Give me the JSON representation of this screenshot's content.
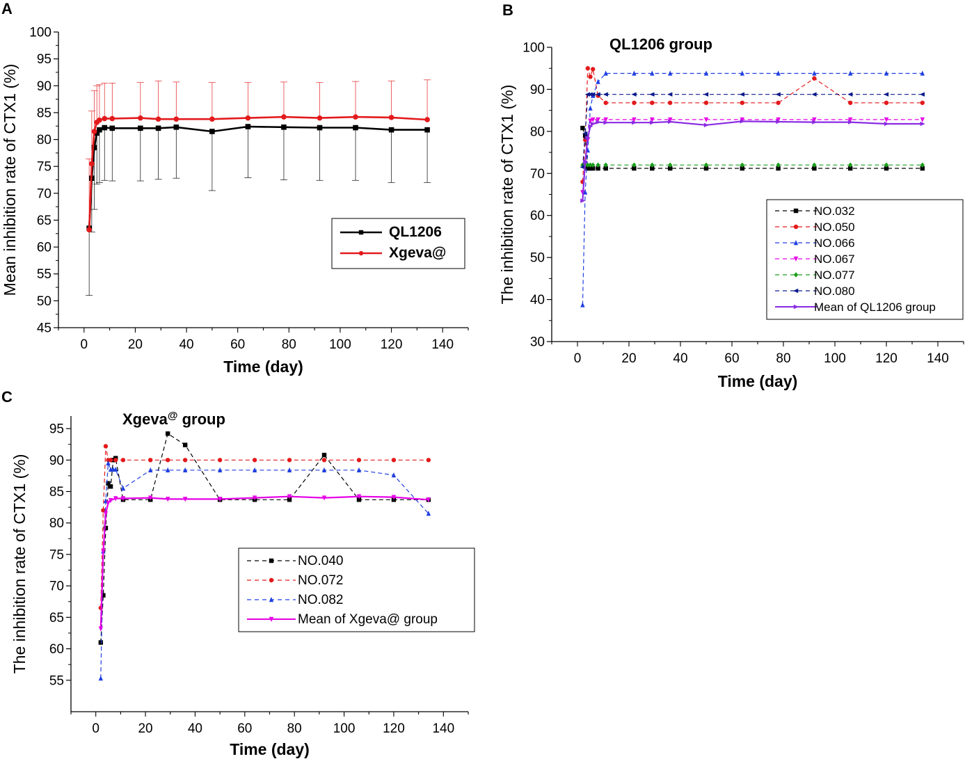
{
  "chart_data": [
    {
      "panel": "A",
      "type": "line",
      "title": "",
      "xlabel": "Time (day)",
      "ylabel": "Mean  inhibition rate of CTX1 (%)",
      "xlim": [
        -10,
        150
      ],
      "ylim": [
        45,
        100
      ],
      "xticks": [
        0,
        20,
        40,
        60,
        80,
        100,
        120,
        140
      ],
      "yticks": [
        45,
        50,
        55,
        60,
        65,
        70,
        75,
        80,
        85,
        90,
        95,
        100
      ],
      "legend_position": "center-right",
      "series": [
        {
          "name": "QL1206",
          "color": "#000000",
          "marker": "square",
          "x": [
            2,
            3,
            4,
            5,
            6,
            8,
            11,
            22,
            29,
            36,
            50,
            64,
            78,
            92,
            106,
            120,
            134
          ],
          "y": [
            63.5,
            72.8,
            78.5,
            81.2,
            81.8,
            82.2,
            82.1,
            82.1,
            82.1,
            82.3,
            81.5,
            82.4,
            82.3,
            82.2,
            82.2,
            81.8,
            81.8
          ],
          "err": [
            12.5,
            10,
            11.5,
            9.5,
            9.8,
            9.8,
            9.8,
            9.8,
            9.5,
            9.5,
            11,
            9.5,
            9.8,
            9.8,
            9.8,
            9.8,
            9.8
          ]
        },
        {
          "name": "Xgeva@",
          "color": "#e31a1c",
          "marker": "circle",
          "x": [
            2,
            3,
            4,
            5,
            6,
            8,
            11,
            22,
            29,
            36,
            50,
            64,
            78,
            92,
            106,
            120,
            134
          ],
          "y": [
            63.2,
            75.5,
            81.5,
            83.2,
            83.6,
            83.9,
            83.9,
            84.0,
            83.8,
            83.8,
            83.8,
            84.0,
            84.2,
            84.0,
            84.2,
            84.1,
            83.7
          ],
          "err": [
            13.2,
            9.8,
            7.6,
            6.8,
            6.6,
            6.6,
            6.6,
            6.6,
            7.1,
            6.9,
            6.8,
            6.6,
            6.5,
            6.6,
            6.6,
            6.8,
            7.4
          ]
        }
      ]
    },
    {
      "panel": "B",
      "type": "line",
      "title": "QL1206 group",
      "xlabel": "Time (day)",
      "ylabel": "The inhibition rate of CTX1 (%)",
      "xlim": [
        -10,
        150
      ],
      "ylim": [
        30,
        100
      ],
      "xticks": [
        0,
        20,
        40,
        60,
        80,
        100,
        120,
        140
      ],
      "yticks": [
        30,
        40,
        50,
        60,
        70,
        80,
        90,
        100
      ],
      "legend_position": "lower-right",
      "series": [
        {
          "name": "NO.032",
          "color": "#000000",
          "marker": "square",
          "style": "dashed",
          "x": [
            2,
            3,
            4,
            5,
            6,
            8,
            11,
            22,
            29,
            36,
            50,
            64,
            78,
            92,
            106,
            120,
            134
          ],
          "y": [
            80.8,
            79.0,
            71.2,
            71.2,
            71.2,
            71.2,
            71.2,
            71.2,
            71.2,
            71.2,
            71.2,
            71.2,
            71.2,
            71.2,
            71.2,
            71.2,
            71.2
          ]
        },
        {
          "name": "NO.050",
          "color": "#e31a1c",
          "marker": "circle",
          "style": "dashed",
          "x": [
            2,
            3,
            4,
            5,
            6,
            8,
            11,
            22,
            29,
            36,
            50,
            64,
            78,
            92,
            106,
            120,
            134
          ],
          "y": [
            68.0,
            78.0,
            95.0,
            93.0,
            94.8,
            88.5,
            86.8,
            86.8,
            86.8,
            86.8,
            86.8,
            86.8,
            86.8,
            92.6,
            86.8,
            86.8,
            86.8
          ]
        },
        {
          "name": "NO.066",
          "color": "#1f3fe0",
          "marker": "triangle-up",
          "style": "dashed",
          "x": [
            2,
            3,
            4,
            5,
            6,
            8,
            11,
            22,
            29,
            36,
            50,
            64,
            78,
            92,
            106,
            120,
            134
          ],
          "y": [
            38.7,
            65.5,
            75.5,
            85.5,
            88.5,
            91.8,
            93.8,
            93.8,
            93.8,
            93.8,
            93.8,
            93.8,
            93.8,
            93.8,
            93.8,
            93.8,
            93.8
          ]
        },
        {
          "name": "NO.067",
          "color": "#e600e6",
          "marker": "triangle-down",
          "style": "dashed",
          "x": [
            2,
            3,
            4,
            5,
            6,
            8,
            11,
            22,
            29,
            36,
            50,
            64,
            78,
            92,
            106,
            120,
            134
          ],
          "y": [
            65.5,
            72.5,
            78.0,
            82.5,
            82.8,
            82.8,
            82.8,
            82.8,
            82.8,
            82.8,
            82.8,
            82.8,
            82.8,
            82.8,
            82.8,
            82.8,
            82.8
          ]
        },
        {
          "name": "NO.077",
          "color": "#1a9e1a",
          "marker": "diamond",
          "style": "dashed",
          "x": [
            2,
            3,
            4,
            5,
            6,
            8,
            11,
            22,
            29,
            36,
            50,
            64,
            78,
            92,
            106,
            120,
            134
          ],
          "y": [
            72.0,
            72.0,
            72.0,
            72.0,
            72.0,
            72.0,
            72.0,
            72.0,
            72.0,
            72.0,
            72.0,
            72.0,
            72.0,
            72.0,
            72.0,
            72.0,
            72.0
          ]
        },
        {
          "name": "NO.080",
          "color": "#0a1a8c",
          "marker": "triangle-left",
          "style": "dashed",
          "x": [
            2,
            3,
            4,
            5,
            6,
            8,
            11,
            22,
            29,
            36,
            50,
            64,
            78,
            92,
            106,
            120,
            134
          ],
          "y": [
            71.5,
            79.5,
            88.8,
            88.8,
            88.8,
            88.8,
            88.8,
            88.8,
            88.8,
            88.8,
            88.8,
            88.8,
            88.8,
            88.8,
            88.8,
            88.8,
            88.8
          ]
        },
        {
          "name": "Mean  of QL1206 group",
          "color": "#8a2be2",
          "marker": "triangle-right",
          "style": "solid",
          "x": [
            2,
            3,
            4,
            5,
            6,
            8,
            11,
            22,
            29,
            36,
            50,
            64,
            78,
            92,
            106,
            120,
            134
          ],
          "y": [
            63.5,
            72.8,
            78.5,
            81.2,
            81.8,
            82.2,
            82.1,
            82.1,
            82.1,
            82.3,
            81.5,
            82.4,
            82.3,
            82.2,
            82.2,
            81.8,
            81.8
          ]
        }
      ]
    },
    {
      "panel": "C",
      "type": "line",
      "title": "Xgeva",
      "title_superscript": "@",
      "title_suffix": " group",
      "xlabel": "Time (day)",
      "ylabel": "The inhibition rate of CTX1 (%)",
      "xlim": [
        -10,
        150
      ],
      "ylim": [
        50,
        97
      ],
      "xticks": [
        0,
        20,
        40,
        60,
        80,
        100,
        120,
        140
      ],
      "yticks": [
        55,
        60,
        65,
        70,
        75,
        80,
        85,
        90,
        95
      ],
      "legend_position": "center",
      "series": [
        {
          "name": "NO.040",
          "color": "#000000",
          "marker": "square",
          "style": "dashed",
          "x": [
            2,
            3,
            4,
            5,
            6,
            7,
            8,
            11,
            22,
            29,
            36,
            50,
            64,
            78,
            92,
            106,
            120,
            134
          ],
          "y": [
            61.0,
            68.5,
            79.2,
            86.3,
            85.8,
            90.0,
            90.3,
            83.7,
            83.7,
            94.2,
            92.4,
            83.7,
            83.7,
            83.7,
            90.8,
            83.7,
            83.7,
            83.7
          ]
        },
        {
          "name": "NO.072",
          "color": "#e31a1c",
          "marker": "circle",
          "style": "dashed",
          "x": [
            2,
            3,
            4,
            5,
            6,
            8,
            11,
            22,
            29,
            36,
            50,
            64,
            78,
            92,
            106,
            120,
            134
          ],
          "y": [
            66.5,
            82.0,
            92.2,
            90.0,
            90.0,
            90.0,
            90.0,
            90.0,
            90.0,
            90.0,
            90.0,
            90.0,
            90.0,
            90.0,
            90.0,
            90.0,
            90.0
          ]
        },
        {
          "name": "NO.082",
          "color": "#1f3fe0",
          "marker": "triangle-up",
          "style": "dashed",
          "x": [
            2,
            3,
            4,
            5,
            6,
            7,
            8,
            11,
            22,
            29,
            36,
            50,
            64,
            78,
            92,
            106,
            120,
            134
          ],
          "y": [
            55.3,
            75.5,
            83.5,
            89.5,
            88.5,
            88.5,
            88.5,
            85.5,
            88.4,
            88.4,
            88.4,
            88.4,
            88.4,
            88.4,
            88.4,
            88.4,
            87.6,
            81.5
          ]
        },
        {
          "name": "Mean of Xgeva@ group",
          "color": "#e600e6",
          "marker": "triangle-down",
          "style": "solid",
          "x": [
            2,
            3,
            4,
            5,
            6,
            8,
            11,
            22,
            29,
            36,
            50,
            64,
            78,
            92,
            106,
            120,
            134
          ],
          "y": [
            63.2,
            75.5,
            81.5,
            83.2,
            83.6,
            83.9,
            83.9,
            84.0,
            83.8,
            83.8,
            83.8,
            84.0,
            84.2,
            84.0,
            84.2,
            84.1,
            83.7
          ]
        }
      ]
    }
  ]
}
